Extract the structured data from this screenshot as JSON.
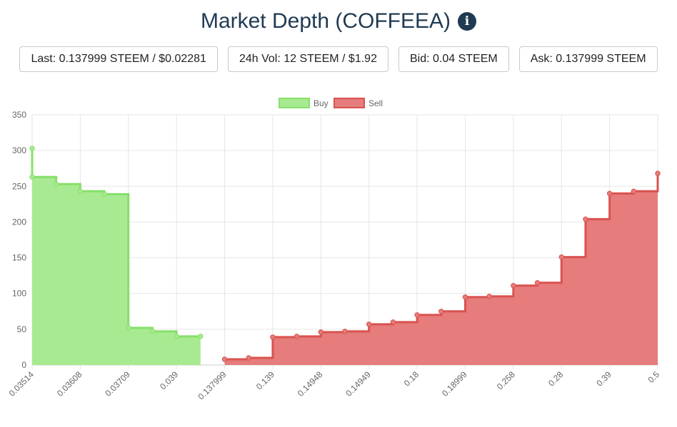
{
  "header": {
    "title": "Market Depth (COFFEEA)",
    "info_icon": "info-icon"
  },
  "stats": {
    "last": "Last: 0.137999 STEEM / $0.02281",
    "volume": "24h Vol: 12 STEEM / $1.92",
    "bid": "Bid: 0.04 STEEM",
    "ask": "Ask: 0.137999 STEEM"
  },
  "chart_data": {
    "type": "area",
    "legend": {
      "placement": "top-center",
      "items": [
        {
          "name": "Buy",
          "fill": "#a8ea91",
          "stroke": "#86e06a"
        },
        {
          "name": "Sell",
          "fill": "#e67c7c",
          "stroke": "#d9534f"
        }
      ]
    },
    "ylim": [
      0,
      350
    ],
    "yticks": [
      "0",
      "50",
      "100",
      "150",
      "200",
      "250",
      "300",
      "350"
    ],
    "xticks": [
      "0.03514",
      "0.03608",
      "0.03709",
      "0.039",
      "0.137999",
      "0.139",
      "0.14948",
      "0.14949",
      "0.18",
      "0.18999",
      "0.258",
      "0.28",
      "0.39",
      "0.5"
    ],
    "grid": true,
    "series": [
      {
        "name": "Buy",
        "color": "#86e06a",
        "points": [
          [
            0,
            303
          ],
          [
            0,
            263
          ],
          [
            1,
            263
          ],
          [
            1,
            253
          ],
          [
            2,
            253
          ],
          [
            2,
            243
          ],
          [
            3,
            243
          ],
          [
            3,
            239
          ],
          [
            4,
            239
          ],
          [
            4,
            52
          ],
          [
            5,
            52
          ],
          [
            5,
            47
          ],
          [
            6,
            47
          ],
          [
            6,
            40
          ],
          [
            7,
            40
          ]
        ]
      },
      {
        "name": "Sell",
        "color": "#d9534f",
        "points": [
          [
            8,
            8
          ],
          [
            9,
            10
          ],
          [
            10,
            39
          ],
          [
            11,
            40
          ],
          [
            12,
            46
          ],
          [
            13,
            47
          ],
          [
            14,
            57
          ],
          [
            15,
            60
          ],
          [
            16,
            70
          ],
          [
            17,
            75
          ],
          [
            18,
            95
          ],
          [
            19,
            96
          ],
          [
            20,
            111
          ],
          [
            21,
            115
          ],
          [
            22,
            151
          ],
          [
            23,
            204
          ],
          [
            24,
            240
          ],
          [
            25,
            243
          ],
          [
            26,
            268
          ]
        ]
      }
    ]
  }
}
